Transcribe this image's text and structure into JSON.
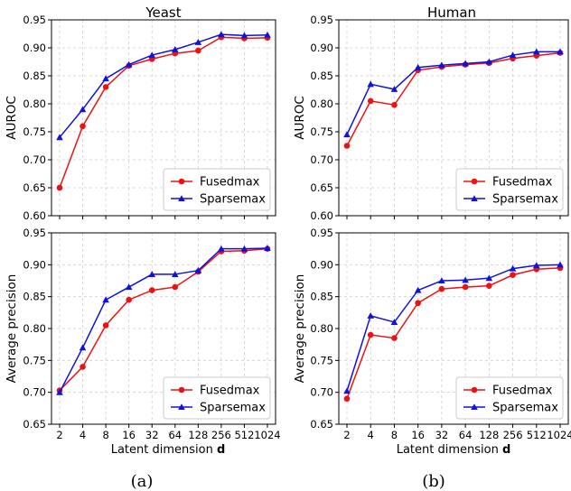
{
  "columns": [
    {
      "title": "Yeast",
      "caption": "(a)"
    },
    {
      "title": "Human",
      "caption": "(b)"
    }
  ],
  "xlabel_prefix": "Latent dimension ",
  "xlabel_bold": "d",
  "colors": {
    "Fusedmax": "#ee1111",
    "Sparsemax": "#1111dd",
    "grid": "#cfcfcf",
    "axis": "#000000"
  },
  "chart_data": [
    {
      "type": "line",
      "title": "Yeast",
      "xlabel": "Latent dimension d",
      "ylabel": "AUROC",
      "x": [
        "2",
        "4",
        "8",
        "16",
        "32",
        "64",
        "128",
        "256",
        "512",
        "1024"
      ],
      "ylim": [
        0.6,
        0.95
      ],
      "yticks": [
        "0.60",
        "0.65",
        "0.70",
        "0.75",
        "0.80",
        "0.85",
        "0.90",
        "0.95"
      ],
      "grid": true,
      "legend": "bottom-right",
      "series": [
        {
          "name": "Fusedmax",
          "marker": "circle",
          "values": [
            0.65,
            0.76,
            0.83,
            0.868,
            0.88,
            0.89,
            0.895,
            0.919,
            0.917,
            0.918
          ]
        },
        {
          "name": "Sparsemax",
          "marker": "triangle",
          "values": [
            0.74,
            0.79,
            0.845,
            0.87,
            0.887,
            0.897,
            0.91,
            0.924,
            0.922,
            0.923
          ]
        }
      ]
    },
    {
      "type": "line",
      "title": "Human",
      "xlabel": "Latent dimension d",
      "ylabel": "AUROC",
      "x": [
        "2",
        "4",
        "8",
        "16",
        "32",
        "64",
        "128",
        "256",
        "512",
        "1024"
      ],
      "ylim": [
        0.6,
        0.95
      ],
      "yticks": [
        "0.60",
        "0.65",
        "0.70",
        "0.75",
        "0.80",
        "0.85",
        "0.90",
        "0.95"
      ],
      "grid": true,
      "legend": "bottom-right",
      "series": [
        {
          "name": "Fusedmax",
          "marker": "circle",
          "values": [
            0.725,
            0.805,
            0.798,
            0.86,
            0.866,
            0.87,
            0.873,
            0.881,
            0.886,
            0.891
          ]
        },
        {
          "name": "Sparsemax",
          "marker": "triangle",
          "values": [
            0.745,
            0.835,
            0.826,
            0.865,
            0.869,
            0.872,
            0.875,
            0.887,
            0.893,
            0.893
          ]
        }
      ]
    },
    {
      "type": "line",
      "title": "Yeast",
      "xlabel": "Latent dimension d",
      "ylabel": "Average precision",
      "x": [
        "2",
        "4",
        "8",
        "16",
        "32",
        "64",
        "128",
        "256",
        "512",
        "1024"
      ],
      "ylim": [
        0.65,
        0.95
      ],
      "yticks": [
        "0.65",
        "0.70",
        "0.75",
        "0.80",
        "0.85",
        "0.90",
        "0.95"
      ],
      "grid": true,
      "legend": "bottom-right",
      "series": [
        {
          "name": "Fusedmax",
          "marker": "circle",
          "values": [
            0.703,
            0.74,
            0.805,
            0.845,
            0.86,
            0.865,
            0.889,
            0.921,
            0.922,
            0.925
          ]
        },
        {
          "name": "Sparsemax",
          "marker": "triangle",
          "values": [
            0.7,
            0.77,
            0.845,
            0.865,
            0.885,
            0.885,
            0.891,
            0.925,
            0.925,
            0.926
          ]
        }
      ]
    },
    {
      "type": "line",
      "title": "Human",
      "xlabel": "Latent dimension d",
      "ylabel": "Average precision",
      "x": [
        "2",
        "4",
        "8",
        "16",
        "32",
        "64",
        "128",
        "256",
        "512",
        "1024"
      ],
      "ylim": [
        0.65,
        0.95
      ],
      "yticks": [
        "0.65",
        "0.70",
        "0.75",
        "0.80",
        "0.85",
        "0.90",
        "0.95"
      ],
      "grid": true,
      "legend": "bottom-right",
      "series": [
        {
          "name": "Fusedmax",
          "marker": "circle",
          "values": [
            0.69,
            0.79,
            0.785,
            0.84,
            0.862,
            0.865,
            0.867,
            0.884,
            0.893,
            0.895
          ]
        },
        {
          "name": "Sparsemax",
          "marker": "triangle",
          "values": [
            0.702,
            0.82,
            0.81,
            0.86,
            0.875,
            0.876,
            0.879,
            0.894,
            0.899,
            0.9
          ]
        }
      ]
    }
  ]
}
